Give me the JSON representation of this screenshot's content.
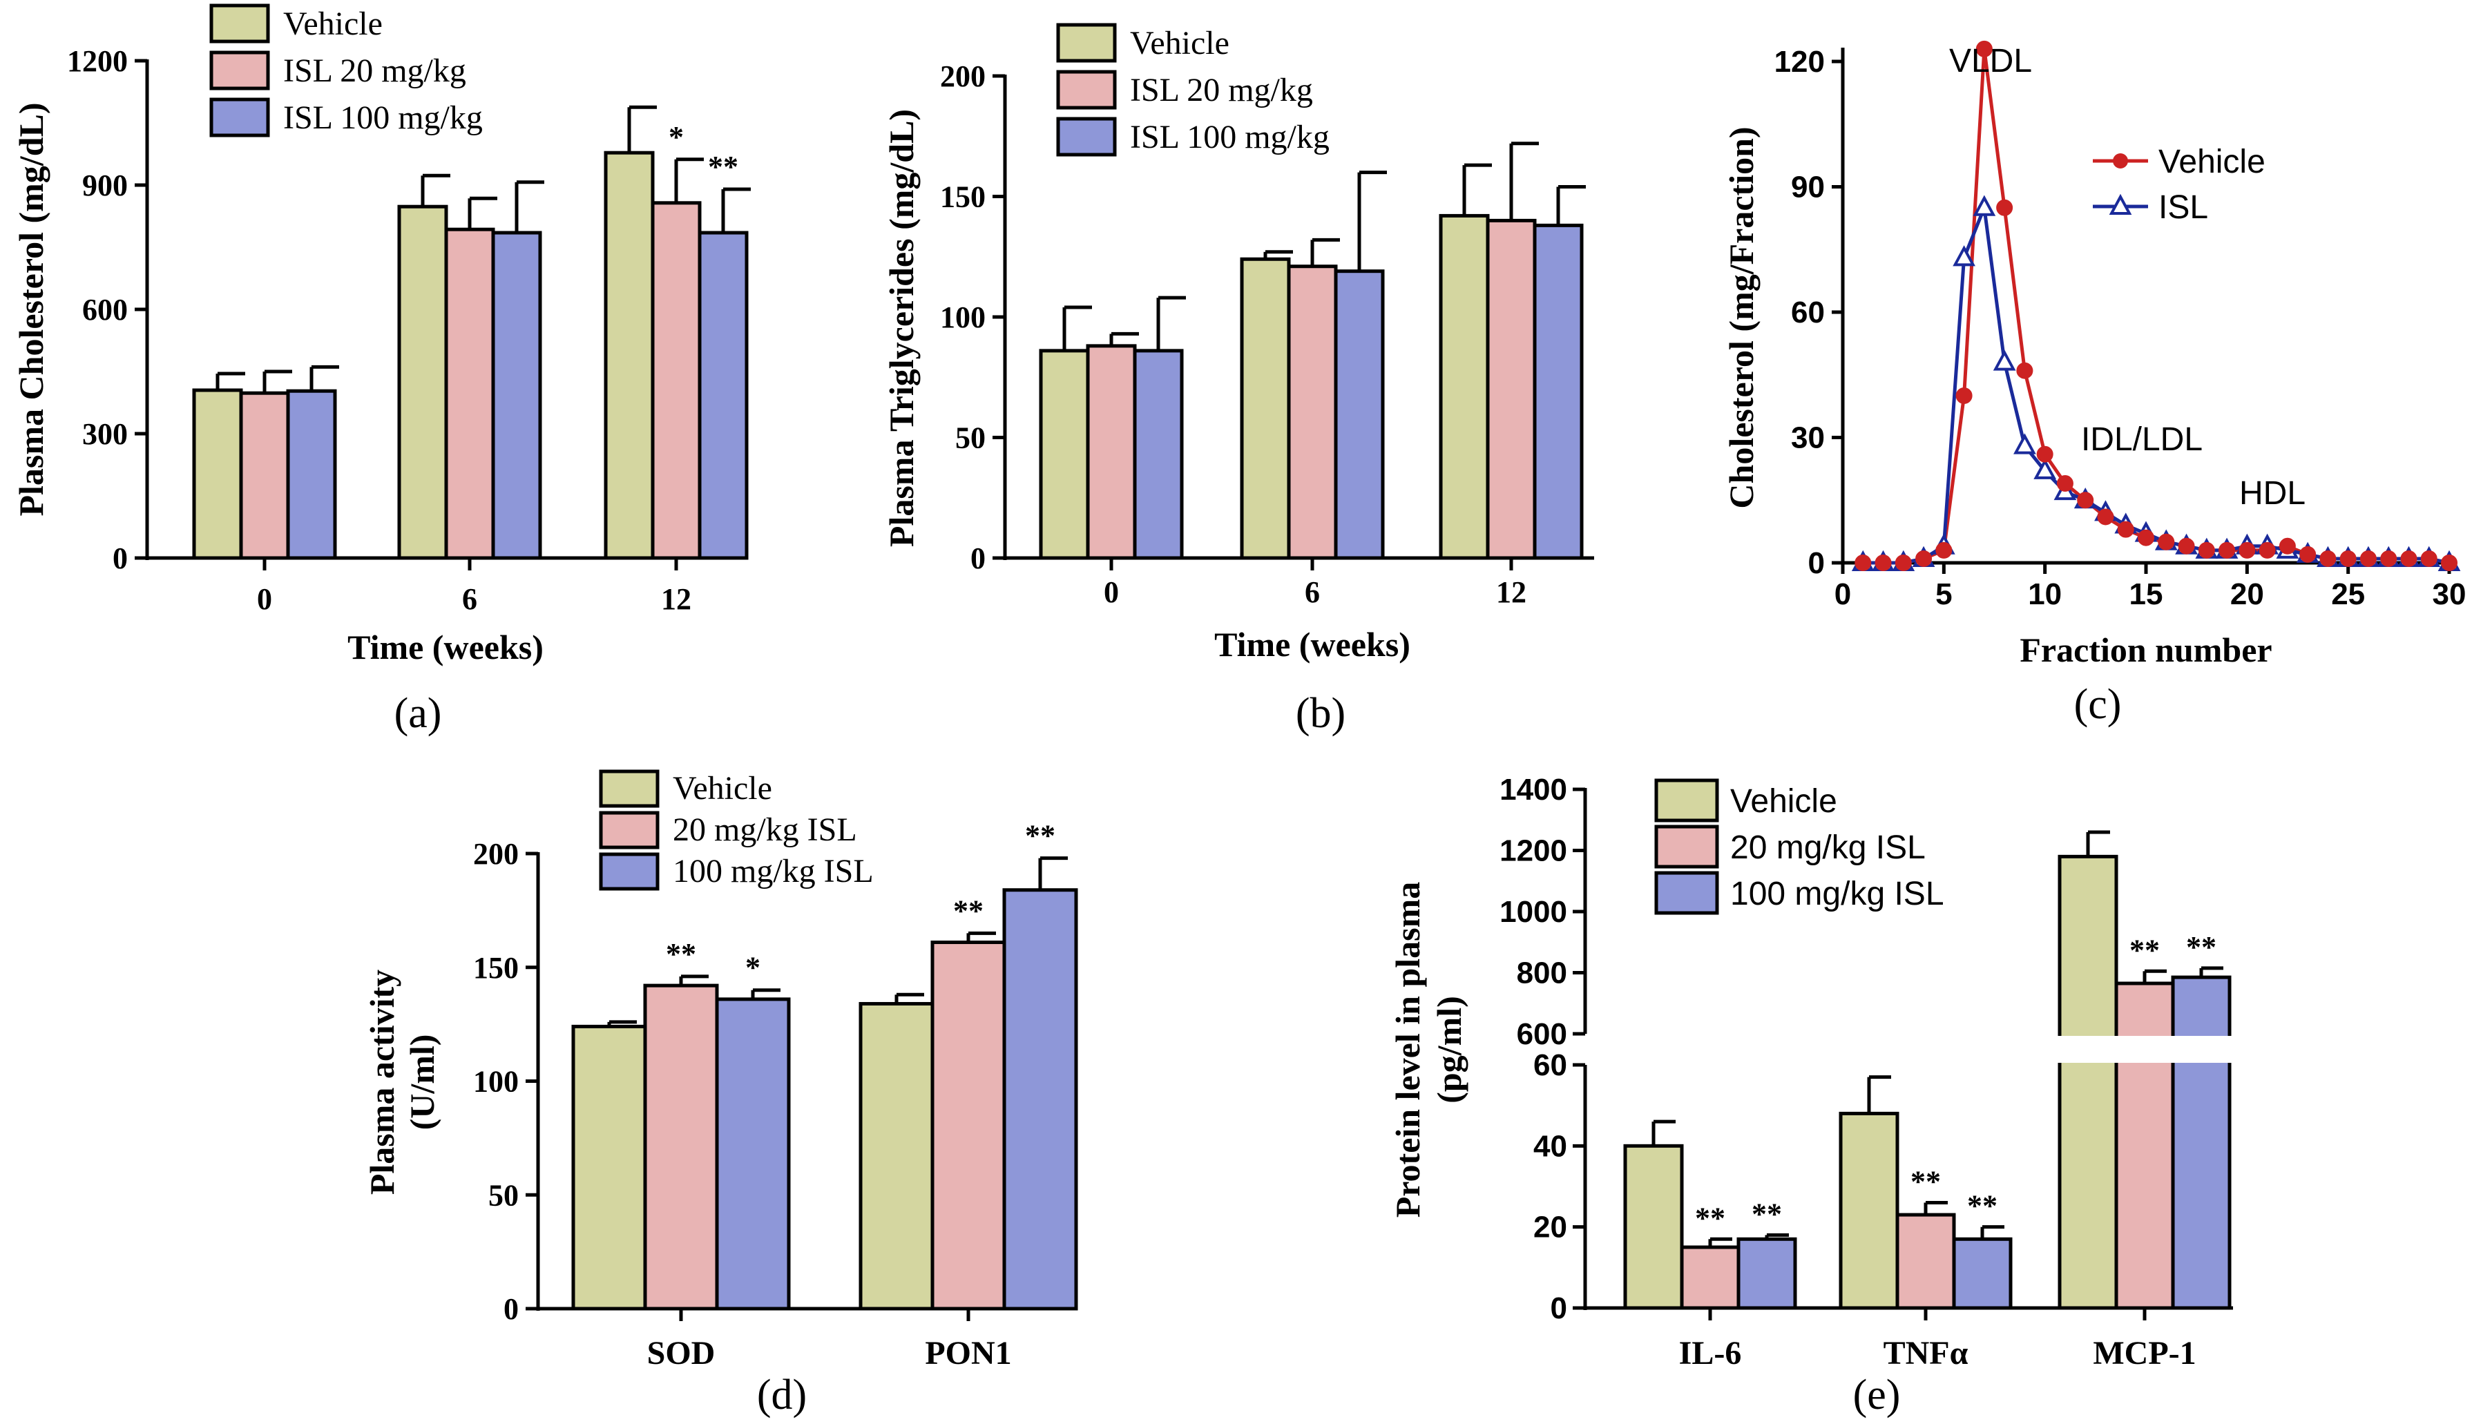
{
  "colors": {
    "vehicle": "#D4D6A0",
    "low": "#E8B4B4",
    "high": "#8E97D8",
    "vehicle_line": "#CC2222",
    "isl_line": "#1A2A9A"
  },
  "chart_data": [
    {
      "id": "a",
      "type": "bar",
      "panel_label": "(a)",
      "xlabel": "Time (weeks)",
      "ylabel": "Plasma Cholesterol (mg/dL)",
      "ylim": [
        0,
        1200
      ],
      "yticks": [
        "0",
        "300",
        "600",
        "900",
        "1200"
      ],
      "categories": [
        "0",
        "6",
        "12"
      ],
      "legend": [
        "Vehicle",
        "ISL 20 mg/kg",
        "ISL 100 mg/kg"
      ],
      "series": [
        {
          "name": "Vehicle",
          "values": [
            405,
            848,
            978
          ],
          "errors": [
            40,
            75,
            110
          ]
        },
        {
          "name": "ISL 20 mg/kg",
          "values": [
            398,
            793,
            857
          ],
          "errors": [
            52,
            75,
            105
          ]
        },
        {
          "name": "ISL 100 mg/kg",
          "values": [
            403,
            785,
            785
          ],
          "errors": [
            58,
            122,
            105
          ]
        }
      ],
      "stars": [
        [
          "",
          "",
          ""
        ],
        [
          "",
          "",
          "*"
        ],
        [
          "",
          "",
          "**"
        ]
      ]
    },
    {
      "id": "b",
      "type": "bar",
      "panel_label": "(b)",
      "xlabel": "Time (weeks)",
      "ylabel": "Plasma Triglycerides (mg/dL)",
      "ylim": [
        0,
        200
      ],
      "yticks": [
        "0",
        "50",
        "100",
        "150",
        "200"
      ],
      "categories": [
        "0",
        "6",
        "12"
      ],
      "legend": [
        "Vehicle",
        "ISL 20 mg/kg",
        "ISL 100 mg/kg"
      ],
      "series": [
        {
          "name": "Vehicle",
          "values": [
            86,
            124,
            142
          ],
          "errors": [
            18,
            3,
            21
          ]
        },
        {
          "name": "ISL 20 mg/kg",
          "values": [
            88,
            121,
            140
          ],
          "errors": [
            5,
            11,
            32
          ]
        },
        {
          "name": "ISL 100 mg/kg",
          "values": [
            86,
            119,
            138
          ],
          "errors": [
            22,
            41,
            16
          ]
        }
      ],
      "stars": [
        [
          "",
          "",
          ""
        ],
        [
          "",
          "",
          ""
        ],
        [
          "",
          "",
          ""
        ]
      ]
    },
    {
      "id": "c",
      "type": "line",
      "panel_label": "(c)",
      "xlabel": "Fraction number",
      "ylabel": "Cholesterol (mg/Fraction)",
      "xlim": [
        0,
        30
      ],
      "ylim": [
        0,
        120
      ],
      "xticks": [
        "0",
        "5",
        "10",
        "15",
        "20",
        "25",
        "30"
      ],
      "yticks": [
        "0",
        "30",
        "60",
        "90",
        "120"
      ],
      "annotations": [
        "VLDL",
        "IDL/LDL",
        "HDL"
      ],
      "x": [
        1,
        2,
        3,
        4,
        5,
        6,
        7,
        8,
        9,
        10,
        11,
        12,
        13,
        14,
        15,
        16,
        17,
        18,
        19,
        20,
        21,
        22,
        23,
        24,
        25,
        26,
        27,
        28,
        29,
        30
      ],
      "series": [
        {
          "name": "Vehicle",
          "values": [
            0,
            0,
            0,
            1,
            3,
            40,
            123,
            85,
            46,
            26,
            19,
            15,
            11,
            8,
            6,
            5,
            4,
            3,
            3,
            3,
            3,
            4,
            2,
            1,
            1,
            1,
            1,
            1,
            1,
            0
          ]
        },
        {
          "name": "ISL",
          "values": [
            0,
            0,
            0,
            1,
            4,
            73,
            85,
            48,
            28,
            22,
            17,
            15,
            12,
            9,
            7,
            5,
            4,
            3,
            3,
            4,
            4,
            3,
            2,
            1,
            1,
            1,
            1,
            1,
            1,
            0
          ]
        }
      ]
    },
    {
      "id": "d",
      "type": "bar",
      "panel_label": "(d)",
      "xlabel": "",
      "ylabel_lines": [
        "Plasma activity",
        "(U/ml)"
      ],
      "ylim": [
        0,
        200
      ],
      "yticks": [
        "0",
        "50",
        "100",
        "150",
        "200"
      ],
      "categories": [
        "SOD",
        "PON1"
      ],
      "legend": [
        "Vehicle",
        "20 mg/kg ISL",
        "100 mg/kg ISL"
      ],
      "series": [
        {
          "name": "Vehicle",
          "values": [
            124,
            134
          ],
          "errors": [
            2,
            4
          ]
        },
        {
          "name": "20 mg/kg ISL",
          "values": [
            142,
            161
          ],
          "errors": [
            4,
            4
          ]
        },
        {
          "name": "100 mg/kg ISL",
          "values": [
            136,
            184
          ],
          "errors": [
            4,
            14
          ]
        }
      ],
      "stars": [
        [
          "",
          ""
        ],
        [
          "**",
          "**"
        ],
        [
          "*",
          "**"
        ]
      ]
    },
    {
      "id": "e",
      "type": "bar",
      "panel_label": "(e)",
      "xlabel": "",
      "ylabel_lines": [
        "Protein level in plasma",
        "(pg/ml)"
      ],
      "ylim_lower": [
        0,
        60
      ],
      "ylim_upper": [
        600,
        1400
      ],
      "yticks_lower": [
        "0",
        "20",
        "40",
        "60"
      ],
      "yticks_upper": [
        "600",
        "800",
        "1000",
        "1200",
        "1400"
      ],
      "categories": [
        "IL-6",
        "TNFα",
        "MCP-1"
      ],
      "legend": [
        "Vehicle",
        "20 mg/kg ISL",
        "100 mg/kg ISL"
      ],
      "series": [
        {
          "name": "Vehicle",
          "values": [
            40,
            48,
            1180
          ],
          "errors": [
            6,
            9,
            80
          ]
        },
        {
          "name": "20 mg/kg ISL",
          "values": [
            15,
            23,
            765
          ],
          "errors": [
            2,
            3,
            40
          ]
        },
        {
          "name": "100 mg/kg ISL",
          "values": [
            17,
            17,
            785
          ],
          "errors": [
            1,
            3,
            30
          ]
        }
      ],
      "stars": [
        [
          "",
          "",
          ""
        ],
        [
          "**",
          "**",
          "**"
        ],
        [
          "**",
          "**",
          "**"
        ]
      ]
    }
  ]
}
